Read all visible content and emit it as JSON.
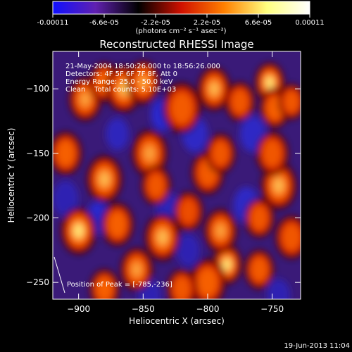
{
  "colorbar": {
    "ticks": [
      "-0.00011",
      "-6.6e-05",
      "-2.2e-05",
      "2.2e-05",
      "6.6e-05",
      "0.00011"
    ],
    "tick_values": [
      -0.00011,
      -6.6e-05,
      -2.2e-05,
      2.2e-05,
      6.6e-05,
      0.00011
    ],
    "range": [
      -0.00011,
      0.00011
    ],
    "units_label": "(photons cm⁻² s⁻¹ asec⁻²)",
    "colormap": [
      "#1010ff",
      "#6020b0",
      "#000000",
      "#d01000",
      "#ff8000",
      "#ffff80",
      "#ffffff"
    ]
  },
  "chart_data": {
    "type": "heatmap",
    "title": "Reconstructed RHESSI Image",
    "xlabel": "Heliocentric X (arcsec)",
    "ylabel": "Heliocentric Y (arcsec)",
    "xlim": [
      -920,
      -728
    ],
    "ylim": [
      -263,
      -71
    ],
    "x_ticks": [
      -900,
      -850,
      -800,
      -750
    ],
    "x_tick_labels": [
      "−900",
      "−850",
      "−800",
      "−750"
    ],
    "y_ticks": [
      -100,
      -150,
      -200,
      -250
    ],
    "y_tick_labels": [
      "−100",
      "−150",
      "−200",
      "−250"
    ],
    "info_lines": [
      "21-May-2004 18:50:26.000 to 18:56:26.000",
      "Detectors: 4F 5F 6F 7F 8F, Att 0",
      "Energy Range: 25.0 - 50.0 keV",
      "Clean    Total counts: 5.10E+03"
    ],
    "peak_label": "Position of Peak = [-785,-236]",
    "peak_position": [
      -785,
      -236
    ],
    "hot_spots": [
      [
        -895,
        -108,
        0.85,
        11
      ],
      [
        -880,
        -95,
        0.8,
        10
      ],
      [
        -865,
        -100,
        0.9,
        12
      ],
      [
        -850,
        -95,
        0.85,
        11
      ],
      [
        -820,
        -115,
        0.75,
        13
      ],
      [
        -795,
        -100,
        0.9,
        11
      ],
      [
        -775,
        -110,
        0.7,
        10
      ],
      [
        -752,
        -95,
        1.0,
        10
      ],
      [
        -748,
        -115,
        0.8,
        10
      ],
      [
        -735,
        -110,
        0.7,
        9
      ],
      [
        -910,
        -150,
        0.8,
        11
      ],
      [
        -880,
        -170,
        0.9,
        12
      ],
      [
        -845,
        -150,
        0.85,
        12
      ],
      [
        -840,
        -175,
        0.7,
        10
      ],
      [
        -800,
        -165,
        0.75,
        11
      ],
      [
        -790,
        -150,
        0.7,
        10
      ],
      [
        -745,
        -175,
        0.9,
        12
      ],
      [
        -750,
        -150,
        0.7,
        11
      ],
      [
        -900,
        -210,
        1.0,
        12
      ],
      [
        -870,
        -205,
        0.8,
        11
      ],
      [
        -835,
        -215,
        0.9,
        12
      ],
      [
        -855,
        -240,
        0.85,
        11
      ],
      [
        -785,
        -236,
        1.0,
        10
      ],
      [
        -790,
        -210,
        0.85,
        11
      ],
      [
        -800,
        -250,
        0.8,
        12
      ],
      [
        -760,
        -240,
        0.75,
        10
      ],
      [
        -735,
        -215,
        0.7,
        11
      ],
      [
        -880,
        -255,
        0.8,
        10
      ],
      [
        -820,
        -255,
        0.7,
        10
      ],
      [
        -760,
        -200,
        0.7,
        10
      ],
      [
        -815,
        -195,
        0.6,
        10
      ]
    ],
    "cold_spots": [
      [
        -835,
        -120,
        0.9,
        9
      ],
      [
        -885,
        -200,
        0.9,
        9
      ],
      [
        -870,
        -135,
        0.7,
        9
      ],
      [
        -810,
        -135,
        0.8,
        10
      ],
      [
        -765,
        -135,
        0.8,
        10
      ],
      [
        -830,
        -195,
        0.7,
        10
      ],
      [
        -770,
        -190,
        0.8,
        10
      ],
      [
        -815,
        -225,
        0.6,
        9
      ],
      [
        -910,
        -185,
        0.6,
        10
      ],
      [
        -845,
        -260,
        0.6,
        9
      ],
      [
        -745,
        -260,
        0.6,
        9
      ]
    ],
    "grid": false
  },
  "timestamp": "19-Jun-2013 11:04"
}
